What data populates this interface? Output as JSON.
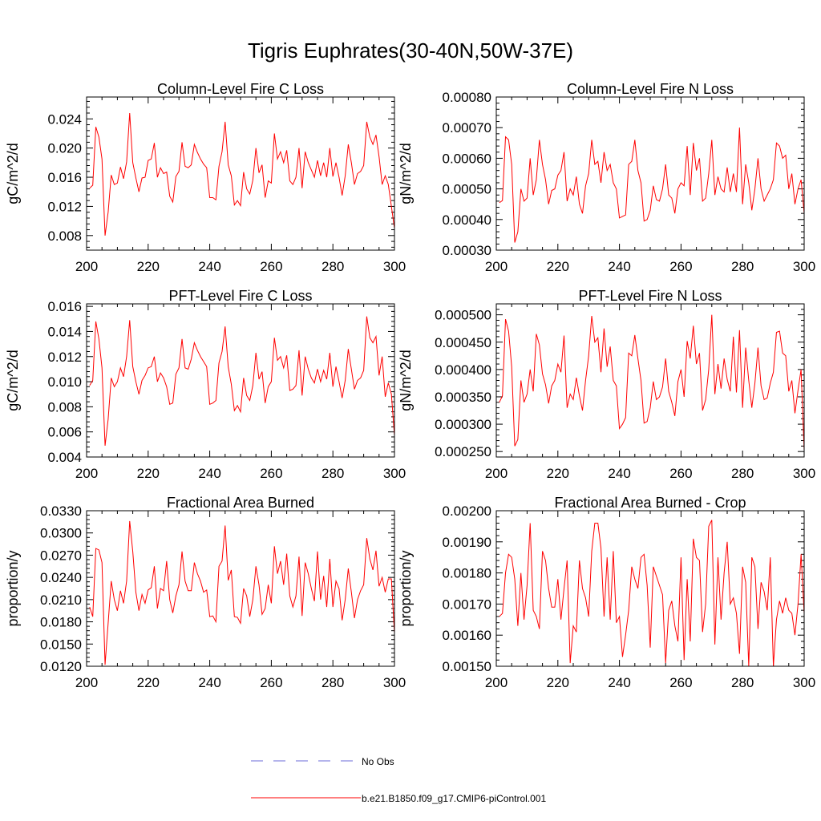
{
  "figure": {
    "title": "Tigris Euphrates(30-40N,50W-37E)"
  },
  "legend": {
    "entries": [
      {
        "label": "No Obs",
        "color": "#6a6ad8",
        "style": "dashed"
      },
      {
        "label": "b.e21.B1850.f09_g17.CMIP6-piControl.001",
        "color": "#ff0000",
        "style": "solid"
      }
    ]
  },
  "chart_data": [
    {
      "type": "line",
      "title": "Column-Level Fire C Loss",
      "xlabel": "",
      "ylabel": "gC/m^2/d",
      "xlim": [
        200,
        300
      ],
      "ylim": [
        0.006,
        0.027
      ],
      "xticks": [
        200,
        220,
        240,
        260,
        280,
        300
      ],
      "yticks": [
        0.008,
        0.012,
        0.016,
        0.02,
        0.024
      ],
      "ytick_labels": [
        "0.008",
        "0.012",
        "0.016",
        "0.020",
        "0.024"
      ],
      "x_start": 201,
      "series": [
        {
          "name": "b.e21.B1850.f09_g17.CMIP6-piControl.001",
          "color": "#ff0000",
          "values": [
            0.0145,
            0.0149,
            0.0229,
            0.0215,
            0.0185,
            0.008,
            0.0112,
            0.0163,
            0.015,
            0.0152,
            0.0174,
            0.0158,
            0.0181,
            0.0248,
            0.018,
            0.0159,
            0.014,
            0.0159,
            0.016,
            0.0183,
            0.0185,
            0.0207,
            0.016,
            0.0173,
            0.0165,
            0.0167,
            0.0134,
            0.0126,
            0.0161,
            0.0168,
            0.0208,
            0.0175,
            0.0173,
            0.0177,
            0.0205,
            0.0194,
            0.0185,
            0.0178,
            0.0173,
            0.0132,
            0.0132,
            0.0129,
            0.0175,
            0.0195,
            0.0236,
            0.0177,
            0.0162,
            0.0122,
            0.0128,
            0.0121,
            0.0167,
            0.0144,
            0.0137,
            0.0156,
            0.02,
            0.0166,
            0.0177,
            0.0132,
            0.0155,
            0.0152,
            0.022,
            0.0185,
            0.0195,
            0.018,
            0.0197,
            0.0155,
            0.015,
            0.016,
            0.02,
            0.0145,
            0.0195,
            0.018,
            0.017,
            0.016,
            0.0183,
            0.0162,
            0.018,
            0.016,
            0.02,
            0.0161,
            0.018,
            0.016,
            0.0135,
            0.0162,
            0.0205,
            0.018,
            0.015,
            0.0165,
            0.0168,
            0.0176,
            0.0236,
            0.0215,
            0.0205,
            0.0218,
            0.0188,
            0.015,
            0.0162,
            0.015,
            0.012,
            0.009
          ]
        }
      ]
    },
    {
      "type": "line",
      "title": "Column-Level Fire N Loss",
      "xlabel": "",
      "ylabel": "gN/m^2/d",
      "xlim": [
        200,
        300
      ],
      "ylim": [
        0.0003,
        0.0008
      ],
      "xticks": [
        200,
        220,
        240,
        260,
        280,
        300
      ],
      "yticks": [
        0.0003,
        0.0004,
        0.0005,
        0.0006,
        0.0007,
        0.0008
      ],
      "ytick_labels": [
        "0.00030",
        "0.00040",
        "0.00050",
        "0.00060",
        "0.00070",
        "0.00080"
      ],
      "x_start": 201,
      "series": [
        {
          "name": "b.e21.B1850.f09_g17.CMIP6-piControl.001",
          "color": "#ff0000",
          "values": [
            0.000455,
            0.000462,
            0.00067,
            0.00066,
            0.00058,
            0.000325,
            0.00036,
            0.0005,
            0.00046,
            0.00047,
            0.0006,
            0.00048,
            0.00053,
            0.00066,
            0.00058,
            0.00053,
            0.00045,
            0.000495,
            0.0005,
            0.000545,
            0.00056,
            0.00062,
            0.00046,
            0.0005,
            0.00048,
            0.00054,
            0.00045,
            0.00042,
            0.00051,
            0.00055,
            0.00066,
            0.00058,
            0.00059,
            0.00052,
            0.00062,
            0.00056,
            0.00058,
            0.00052,
            0.0005,
            0.000405,
            0.00041,
            0.000415,
            0.00058,
            0.00059,
            0.00066,
            0.00056,
            0.00052,
            0.000395,
            0.0004,
            0.00043,
            0.00051,
            0.000465,
            0.00046,
            0.0005,
            0.00058,
            0.00048,
            0.00047,
            0.00042,
            0.0005,
            0.00052,
            0.00051,
            0.00064,
            0.00048,
            0.00065,
            0.00056,
            0.0006,
            0.00046,
            0.00047,
            0.00055,
            0.00066,
            0.00048,
            0.00054,
            0.0005,
            0.00049,
            0.00057,
            0.00049,
            0.00055,
            0.00049,
            0.0007,
            0.00045,
            0.00058,
            0.00052,
            0.00043,
            0.0005,
            0.0006,
            0.0005,
            0.00046,
            0.00048,
            0.0005,
            0.00053,
            0.00065,
            0.00064,
            0.0006,
            0.00061,
            0.0005,
            0.00055,
            0.00045,
            0.0005,
            0.00053,
            0.00042
          ]
        }
      ]
    },
    {
      "type": "line",
      "title": "PFT-Level Fire C Loss",
      "xlabel": "",
      "ylabel": "gC/m^2/d",
      "xlim": [
        200,
        300
      ],
      "ylim": [
        0.004,
        0.0162
      ],
      "xticks": [
        200,
        220,
        240,
        260,
        280,
        300
      ],
      "yticks": [
        0.004,
        0.006,
        0.008,
        0.01,
        0.012,
        0.014,
        0.016
      ],
      "ytick_labels": [
        "0.004",
        "0.006",
        "0.008",
        "0.010",
        "0.012",
        "0.014",
        "0.016"
      ],
      "x_start": 201,
      "series": [
        {
          "name": "b.e21.B1850.f09_g17.CMIP6-piControl.001",
          "color": "#ff0000",
          "values": [
            0.0097,
            0.0101,
            0.0148,
            0.0134,
            0.0111,
            0.0049,
            0.007,
            0.0103,
            0.0096,
            0.01,
            0.0111,
            0.0104,
            0.012,
            0.0149,
            0.0112,
            0.01,
            0.009,
            0.0101,
            0.0105,
            0.0111,
            0.0112,
            0.012,
            0.01,
            0.0107,
            0.0103,
            0.0096,
            0.0082,
            0.0083,
            0.0106,
            0.0111,
            0.0134,
            0.0111,
            0.011,
            0.0118,
            0.0131,
            0.0125,
            0.012,
            0.0116,
            0.0112,
            0.0082,
            0.0083,
            0.0085,
            0.0115,
            0.0124,
            0.0144,
            0.0112,
            0.0098,
            0.0077,
            0.0081,
            0.0076,
            0.0103,
            0.0089,
            0.0085,
            0.0097,
            0.0123,
            0.0102,
            0.0108,
            0.0083,
            0.0096,
            0.01,
            0.0135,
            0.0117,
            0.012,
            0.0111,
            0.0121,
            0.0093,
            0.0094,
            0.0097,
            0.0125,
            0.0089,
            0.012,
            0.011,
            0.0103,
            0.0099,
            0.011,
            0.01,
            0.0109,
            0.0102,
            0.0123,
            0.0096,
            0.0112,
            0.01,
            0.0087,
            0.0101,
            0.0126,
            0.011,
            0.0094,
            0.0101,
            0.0103,
            0.0109,
            0.0152,
            0.0135,
            0.0131,
            0.0136,
            0.0105,
            0.012,
            0.0088,
            0.0099,
            0.009,
            0.0057
          ]
        }
      ]
    },
    {
      "type": "line",
      "title": "PFT-Level Fire N Loss",
      "xlabel": "",
      "ylabel": "gN/m^2/d",
      "xlim": [
        200,
        300
      ],
      "ylim": [
        0.00024,
        0.00052
      ],
      "xticks": [
        200,
        220,
        240,
        260,
        280,
        300
      ],
      "yticks": [
        0.00025,
        0.0003,
        0.00035,
        0.0004,
        0.00045,
        0.0005
      ],
      "ytick_labels": [
        "0.000250",
        "0.000300",
        "0.000350",
        "0.000400",
        "0.000450",
        "0.000500"
      ],
      "x_start": 201,
      "series": [
        {
          "name": "b.e21.B1850.f09_g17.CMIP6-piControl.001",
          "color": "#ff0000",
          "values": [
            0.00034,
            0.000352,
            0.000492,
            0.00047,
            0.000405,
            0.00026,
            0.000272,
            0.00038,
            0.00034,
            0.000355,
            0.0004,
            0.00036,
            0.000465,
            0.000445,
            0.000392,
            0.000372,
            0.000338,
            0.00037,
            0.00038,
            0.00041,
            0.000395,
            0.000462,
            0.00033,
            0.000355,
            0.000345,
            0.000385,
            0.000352,
            0.000325,
            0.00038,
            0.000425,
            0.000498,
            0.00045,
            0.000458,
            0.000395,
            0.000475,
            0.000405,
            0.000442,
            0.00038,
            0.00037,
            0.000292,
            0.0003,
            0.000312,
            0.00043,
            0.000425,
            0.000463,
            0.00042,
            0.00038,
            0.000302,
            0.000305,
            0.00033,
            0.000378,
            0.000345,
            0.00035,
            0.000368,
            0.00042,
            0.00036,
            0.00034,
            0.000315,
            0.000378,
            0.0004,
            0.00035,
            0.000452,
            0.00042,
            0.00048,
            0.00041,
            0.00043,
            0.000325,
            0.000345,
            0.0004,
            0.0005,
            0.000355,
            0.00041,
            0.000365,
            0.00042,
            0.000382,
            0.00036,
            0.00046,
            0.000358,
            0.000472,
            0.00033,
            0.00044,
            0.00038,
            0.00033,
            0.000375,
            0.00044,
            0.00037,
            0.000345,
            0.000348,
            0.000375,
            0.000395,
            0.000468,
            0.00047,
            0.00043,
            0.000425,
            0.00036,
            0.00038,
            0.00032,
            0.000362,
            0.0004,
            0.000252
          ]
        }
      ]
    },
    {
      "type": "line",
      "title": "Fractional Area Burned",
      "xlabel": "",
      "ylabel": "proportion/y",
      "xlim": [
        200,
        300
      ],
      "ylim": [
        0.012,
        0.033
      ],
      "xticks": [
        200,
        220,
        240,
        260,
        280,
        300
      ],
      "yticks": [
        0.012,
        0.015,
        0.018,
        0.021,
        0.024,
        0.027,
        0.03,
        0.033
      ],
      "ytick_labels": [
        "0.0120",
        "0.0150",
        "0.0180",
        "0.0210",
        "0.0240",
        "0.0270",
        "0.0300",
        "0.0330"
      ],
      "x_start": 201,
      "series": [
        {
          "name": "b.e21.B1850.f09_g17.CMIP6-piControl.001",
          "color": "#ff0000",
          "values": [
            0.02,
            0.0187,
            0.0279,
            0.0277,
            0.026,
            0.0122,
            0.0178,
            0.0235,
            0.021,
            0.0195,
            0.0222,
            0.0205,
            0.0235,
            0.0316,
            0.0275,
            0.022,
            0.0195,
            0.0217,
            0.0205,
            0.0223,
            0.0226,
            0.0255,
            0.0198,
            0.0225,
            0.0222,
            0.0262,
            0.021,
            0.0192,
            0.0215,
            0.023,
            0.0275,
            0.0235,
            0.0222,
            0.0222,
            0.026,
            0.0245,
            0.0235,
            0.022,
            0.0223,
            0.0187,
            0.0188,
            0.018,
            0.0255,
            0.0262,
            0.031,
            0.0236,
            0.025,
            0.0187,
            0.0186,
            0.0178,
            0.0225,
            0.0215,
            0.0187,
            0.021,
            0.0255,
            0.023,
            0.019,
            0.0198,
            0.023,
            0.0205,
            0.0282,
            0.0245,
            0.0262,
            0.023,
            0.0272,
            0.0215,
            0.02,
            0.0215,
            0.0268,
            0.0188,
            0.026,
            0.0245,
            0.0225,
            0.0208,
            0.0275,
            0.021,
            0.0242,
            0.02,
            0.0265,
            0.02,
            0.0235,
            0.0225,
            0.0182,
            0.021,
            0.0252,
            0.022,
            0.0185,
            0.021,
            0.0222,
            0.023,
            0.0293,
            0.0265,
            0.025,
            0.0276,
            0.0228,
            0.024,
            0.022,
            0.0238,
            0.0238,
            0.0165
          ]
        }
      ]
    },
    {
      "type": "line",
      "title": "Fractional Area Burned - Crop",
      "xlabel": "",
      "ylabel": "proportion/y",
      "xlim": [
        200,
        300
      ],
      "ylim": [
        0.0015,
        0.002
      ],
      "xticks": [
        200,
        220,
        240,
        260,
        280,
        300
      ],
      "yticks": [
        0.0015,
        0.0016,
        0.0017,
        0.0018,
        0.0019,
        0.002
      ],
      "ytick_labels": [
        "0.00150",
        "0.00160",
        "0.00170",
        "0.00180",
        "0.00190",
        "0.00200"
      ],
      "x_start": 201,
      "series": [
        {
          "name": "b.e21.B1850.f09_g17.CMIP6-piControl.001",
          "color": "#ff0000",
          "values": [
            0.00166,
            0.00167,
            0.0018,
            0.00186,
            0.00185,
            0.00178,
            0.00163,
            0.0018,
            0.00165,
            0.00176,
            0.00196,
            0.00168,
            0.00166,
            0.00162,
            0.00187,
            0.00184,
            0.00175,
            0.00169,
            0.00169,
            0.00178,
            0.00165,
            0.00175,
            0.00184,
            0.00151,
            0.00163,
            0.00161,
            0.00184,
            0.00175,
            0.00172,
            0.00166,
            0.00187,
            0.00196,
            0.00196,
            0.00188,
            0.00166,
            0.00185,
            0.00165,
            0.00187,
            0.00164,
            0.00166,
            0.00153,
            0.0016,
            0.00168,
            0.00182,
            0.00178,
            0.00175,
            0.00185,
            0.00186,
            0.00176,
            0.00156,
            0.00182,
            0.00179,
            0.00176,
            0.00173,
            0.00151,
            0.00168,
            0.00171,
            0.00163,
            0.00158,
            0.00185,
            0.00152,
            0.00178,
            0.00158,
            0.00191,
            0.00185,
            0.00184,
            0.00161,
            0.0017,
            0.00195,
            0.00197,
            0.00157,
            0.00185,
            0.00165,
            0.0018,
            0.0019,
            0.0017,
            0.00172,
            0.00167,
            0.00154,
            0.00182,
            0.00177,
            0.0015,
            0.00185,
            0.00182,
            0.00162,
            0.00177,
            0.00174,
            0.00168,
            0.00185,
            0.0015,
            0.00165,
            0.00171,
            0.00167,
            0.00172,
            0.00168,
            0.00167,
            0.0016,
            0.0017,
            0.00186,
            0.00167
          ]
        }
      ]
    }
  ]
}
